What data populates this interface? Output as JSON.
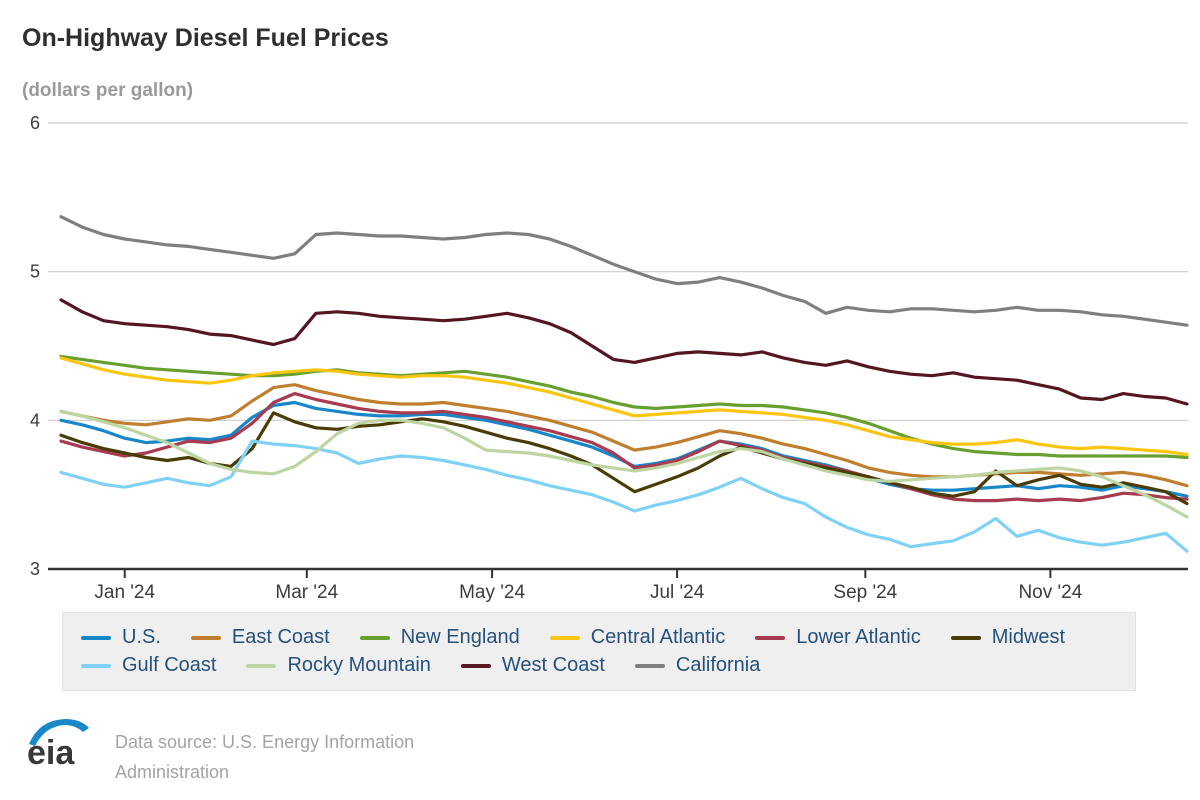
{
  "header": {
    "title": "On-Highway Diesel Fuel Prices",
    "subtitle": "(dollars per gallon)"
  },
  "chart_data": {
    "type": "line",
    "title": "On-Highway Diesel Fuel Prices",
    "ylabel": "dollars per gallon",
    "ylim": [
      3,
      6
    ],
    "yticks": [
      6,
      5,
      4,
      3
    ],
    "grid": "horizontal",
    "legend_position": "bottom",
    "interval": "weekly",
    "n_points": 54,
    "x_ticks": [
      {
        "label": "Jan '24",
        "week": 3
      },
      {
        "label": "Mar '24",
        "week": 11.57
      },
      {
        "label": "May '24",
        "week": 20.29
      },
      {
        "label": "Jul '24",
        "week": 29
      },
      {
        "label": "Sep '24",
        "week": 37.86
      },
      {
        "label": "Nov '24",
        "week": 46.57
      }
    ],
    "series": [
      {
        "name": "U.S.",
        "color": "#1787c9",
        "values": [
          4.0,
          3.97,
          3.93,
          3.88,
          3.85,
          3.86,
          3.88,
          3.87,
          3.9,
          4.02,
          4.1,
          4.12,
          4.08,
          4.06,
          4.04,
          4.03,
          4.03,
          4.04,
          4.04,
          4.02,
          4.0,
          3.97,
          3.94,
          3.9,
          3.86,
          3.82,
          3.76,
          3.69,
          3.71,
          3.74,
          3.8,
          3.86,
          3.84,
          3.81,
          3.76,
          3.73,
          3.7,
          3.66,
          3.61,
          3.57,
          3.54,
          3.53,
          3.53,
          3.54,
          3.55,
          3.56,
          3.54,
          3.56,
          3.55,
          3.53,
          3.56,
          3.54,
          3.52,
          3.49
        ]
      },
      {
        "name": "East Coast",
        "color": "#c07e2f",
        "values": [
          4.06,
          4.03,
          4.0,
          3.98,
          3.97,
          3.99,
          4.01,
          4.0,
          4.03,
          4.13,
          4.22,
          4.24,
          4.2,
          4.17,
          4.14,
          4.12,
          4.11,
          4.11,
          4.12,
          4.1,
          4.08,
          4.06,
          4.03,
          4.0,
          3.96,
          3.92,
          3.86,
          3.8,
          3.82,
          3.85,
          3.89,
          3.93,
          3.91,
          3.88,
          3.84,
          3.81,
          3.77,
          3.73,
          3.68,
          3.65,
          3.63,
          3.62,
          3.62,
          3.63,
          3.64,
          3.65,
          3.65,
          3.64,
          3.63,
          3.64,
          3.65,
          3.63,
          3.6,
          3.56
        ]
      },
      {
        "name": "New England",
        "color": "#68a030",
        "values": [
          4.43,
          4.41,
          4.39,
          4.37,
          4.35,
          4.34,
          4.33,
          4.32,
          4.31,
          4.3,
          4.3,
          4.31,
          4.33,
          4.34,
          4.32,
          4.31,
          4.3,
          4.31,
          4.32,
          4.33,
          4.31,
          4.29,
          4.26,
          4.23,
          4.19,
          4.16,
          4.12,
          4.09,
          4.08,
          4.09,
          4.1,
          4.11,
          4.1,
          4.1,
          4.09,
          4.07,
          4.05,
          4.02,
          3.98,
          3.93,
          3.88,
          3.84,
          3.81,
          3.79,
          3.78,
          3.77,
          3.77,
          3.76,
          3.76,
          3.76,
          3.76,
          3.76,
          3.76,
          3.75
        ]
      },
      {
        "name": "Central Atlantic",
        "color": "#fcc511",
        "values": [
          4.42,
          4.38,
          4.34,
          4.31,
          4.29,
          4.27,
          4.26,
          4.25,
          4.27,
          4.3,
          4.32,
          4.33,
          4.34,
          4.33,
          4.31,
          4.3,
          4.29,
          4.3,
          4.3,
          4.29,
          4.27,
          4.25,
          4.22,
          4.19,
          4.15,
          4.11,
          4.07,
          4.03,
          4.04,
          4.05,
          4.06,
          4.07,
          4.06,
          4.05,
          4.04,
          4.02,
          4.0,
          3.97,
          3.93,
          3.89,
          3.87,
          3.85,
          3.84,
          3.84,
          3.85,
          3.87,
          3.84,
          3.82,
          3.81,
          3.82,
          3.81,
          3.8,
          3.79,
          3.77
        ]
      },
      {
        "name": "Lower Atlantic",
        "color": "#a73b50",
        "values": [
          3.86,
          3.82,
          3.79,
          3.76,
          3.78,
          3.82,
          3.86,
          3.85,
          3.88,
          3.98,
          4.12,
          4.18,
          4.14,
          4.11,
          4.08,
          4.06,
          4.05,
          4.05,
          4.06,
          4.04,
          4.02,
          3.99,
          3.96,
          3.93,
          3.89,
          3.85,
          3.78,
          3.68,
          3.7,
          3.73,
          3.79,
          3.86,
          3.83,
          3.8,
          3.75,
          3.72,
          3.69,
          3.66,
          3.62,
          3.58,
          3.54,
          3.5,
          3.47,
          3.46,
          3.46,
          3.47,
          3.46,
          3.47,
          3.46,
          3.48,
          3.51,
          3.5,
          3.48,
          3.47
        ]
      },
      {
        "name": "Midwest",
        "color": "#4a3c06",
        "values": [
          3.9,
          3.85,
          3.81,
          3.78,
          3.75,
          3.73,
          3.75,
          3.71,
          3.69,
          3.81,
          4.05,
          3.99,
          3.95,
          3.94,
          3.96,
          3.97,
          3.99,
          4.01,
          3.99,
          3.96,
          3.92,
          3.88,
          3.85,
          3.81,
          3.76,
          3.7,
          3.61,
          3.52,
          3.57,
          3.62,
          3.68,
          3.76,
          3.82,
          3.78,
          3.74,
          3.71,
          3.68,
          3.65,
          3.62,
          3.58,
          3.55,
          3.51,
          3.49,
          3.52,
          3.66,
          3.56,
          3.6,
          3.63,
          3.57,
          3.55,
          3.58,
          3.55,
          3.52,
          3.44
        ]
      },
      {
        "name": "Gulf Coast",
        "color": "#7fd2f5",
        "values": [
          3.65,
          3.61,
          3.57,
          3.55,
          3.58,
          3.61,
          3.58,
          3.56,
          3.62,
          3.86,
          3.84,
          3.83,
          3.81,
          3.78,
          3.71,
          3.74,
          3.76,
          3.75,
          3.73,
          3.7,
          3.67,
          3.63,
          3.6,
          3.56,
          3.53,
          3.5,
          3.45,
          3.39,
          3.43,
          3.46,
          3.5,
          3.55,
          3.61,
          3.54,
          3.48,
          3.44,
          3.35,
          3.28,
          3.23,
          3.2,
          3.15,
          3.17,
          3.19,
          3.25,
          3.34,
          3.22,
          3.26,
          3.21,
          3.18,
          3.16,
          3.18,
          3.21,
          3.24,
          3.12
        ]
      },
      {
        "name": "Rocky Mountain",
        "color": "#bdd5a0",
        "values": [
          4.06,
          4.03,
          3.99,
          3.95,
          3.9,
          3.85,
          3.78,
          3.71,
          3.67,
          3.65,
          3.64,
          3.69,
          3.79,
          3.91,
          3.98,
          4.0,
          4.0,
          3.98,
          3.95,
          3.88,
          3.8,
          3.79,
          3.78,
          3.76,
          3.73,
          3.7,
          3.68,
          3.66,
          3.68,
          3.71,
          3.75,
          3.79,
          3.81,
          3.79,
          3.74,
          3.7,
          3.66,
          3.63,
          3.6,
          3.59,
          3.6,
          3.61,
          3.62,
          3.63,
          3.65,
          3.66,
          3.67,
          3.68,
          3.66,
          3.62,
          3.56,
          3.5,
          3.43,
          3.35
        ]
      },
      {
        "name": "West Coast",
        "color": "#551521",
        "values": [
          4.81,
          4.73,
          4.67,
          4.65,
          4.64,
          4.63,
          4.61,
          4.58,
          4.57,
          4.54,
          4.51,
          4.55,
          4.72,
          4.73,
          4.72,
          4.7,
          4.69,
          4.68,
          4.67,
          4.68,
          4.7,
          4.72,
          4.69,
          4.65,
          4.59,
          4.5,
          4.41,
          4.39,
          4.42,
          4.45,
          4.46,
          4.45,
          4.44,
          4.46,
          4.42,
          4.39,
          4.37,
          4.4,
          4.36,
          4.33,
          4.31,
          4.3,
          4.32,
          4.29,
          4.28,
          4.27,
          4.24,
          4.21,
          4.15,
          4.14,
          4.18,
          4.16,
          4.15,
          4.11
        ]
      },
      {
        "name": "California",
        "color": "#7f7f7f",
        "values": [
          5.37,
          5.3,
          5.25,
          5.22,
          5.2,
          5.18,
          5.17,
          5.15,
          5.13,
          5.11,
          5.09,
          5.12,
          5.25,
          5.26,
          5.25,
          5.24,
          5.24,
          5.23,
          5.22,
          5.23,
          5.25,
          5.26,
          5.25,
          5.22,
          5.17,
          5.11,
          5.05,
          5.0,
          4.95,
          4.92,
          4.93,
          4.96,
          4.93,
          4.89,
          4.84,
          4.8,
          4.72,
          4.76,
          4.74,
          4.73,
          4.75,
          4.75,
          4.74,
          4.73,
          4.74,
          4.76,
          4.74,
          4.74,
          4.73,
          4.71,
          4.7,
          4.68,
          4.66,
          4.64
        ]
      }
    ],
    "axis_colors": {
      "grid": "#cccccc",
      "axis_line": "#333333",
      "tick_text": "#3c3c3c"
    }
  },
  "footer": {
    "logo_text": "eia",
    "source_line1": "Data source: U.S. Energy Information",
    "source_line2": "Administration"
  }
}
